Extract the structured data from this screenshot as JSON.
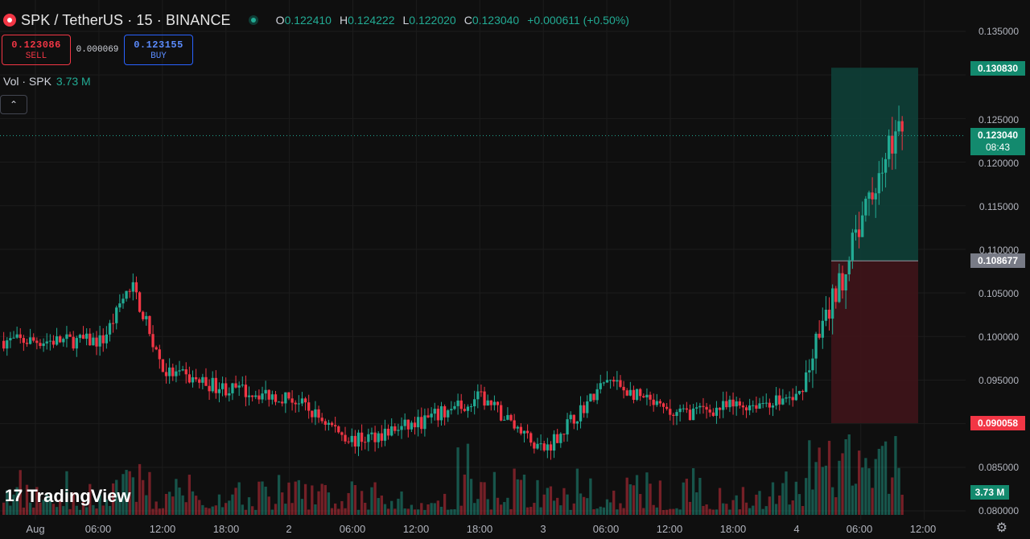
{
  "header": {
    "symbol": "SPK / TetherUS · 15 · BINANCE",
    "ohlc": [
      {
        "k": "O",
        "v": "0.122410"
      },
      {
        "k": "H",
        "v": "0.124222"
      },
      {
        "k": "L",
        "v": "0.122020"
      },
      {
        "k": "C",
        "v": "0.123040"
      }
    ],
    "change": "+0.000611 (+0.50%)"
  },
  "trade": {
    "sell_price": "0.123086",
    "sell_label": "SELL",
    "spread": "0.000069",
    "buy_price": "0.123155",
    "buy_label": "BUY"
  },
  "volume": {
    "label": "Vol · SPK",
    "value": "3.73 M"
  },
  "price_scale": [
    "0.135000",
    "0.125000",
    "0.120000",
    "0.115000",
    "0.110000",
    "0.105000",
    "0.100000",
    "0.095000",
    "0.085000",
    "0.080000"
  ],
  "price_tags": {
    "target": "0.130830",
    "current": "0.123040",
    "countdown": "08:43",
    "entry": "0.108677",
    "stop": "0.090058",
    "volume": "3.73 M"
  },
  "time_labels": [
    "Aug",
    "06:00",
    "12:00",
    "18:00",
    "2",
    "06:00",
    "12:00",
    "18:00",
    "3",
    "06:00",
    "12:00",
    "18:00",
    "4",
    "06:00",
    "12:00"
  ],
  "logo": {
    "mark": "17",
    "text": "TradingView"
  },
  "colors": {
    "up": "#22ab94",
    "down": "#f23645",
    "profit": "#0f3d36",
    "loss": "#3d1419",
    "bg": "#0f0f0f"
  },
  "chart_data": {
    "type": "candlestick",
    "symbol": "SPK/USDT",
    "interval": "15",
    "ylim": [
      0.08,
      0.137
    ],
    "price_anchors": [
      {
        "time": "Aug 06:00",
        "price": 0.099
      },
      {
        "time": "Aug 09:00",
        "price": 0.106
      },
      {
        "time": "Aug 12:00",
        "price": 0.096
      },
      {
        "time": "Aug 18:00",
        "price": 0.094
      },
      {
        "time": "2 00:00",
        "price": 0.093
      },
      {
        "time": "2 06:00",
        "price": 0.088
      },
      {
        "time": "2 12:00",
        "price": 0.09
      },
      {
        "time": "2 18:00",
        "price": 0.093
      },
      {
        "time": "3 00:00",
        "price": 0.087
      },
      {
        "time": "3 06:00",
        "price": 0.095
      },
      {
        "time": "3 12:00",
        "price": 0.091
      },
      {
        "time": "3 18:00",
        "price": 0.092
      },
      {
        "time": "4 00:00",
        "price": 0.093
      },
      {
        "time": "4 06:00",
        "price": 0.113
      },
      {
        "time": "4 09:00",
        "price": 0.123
      }
    ],
    "position": {
      "entry": 0.108677,
      "target": 0.13083,
      "stop": 0.090058
    }
  }
}
